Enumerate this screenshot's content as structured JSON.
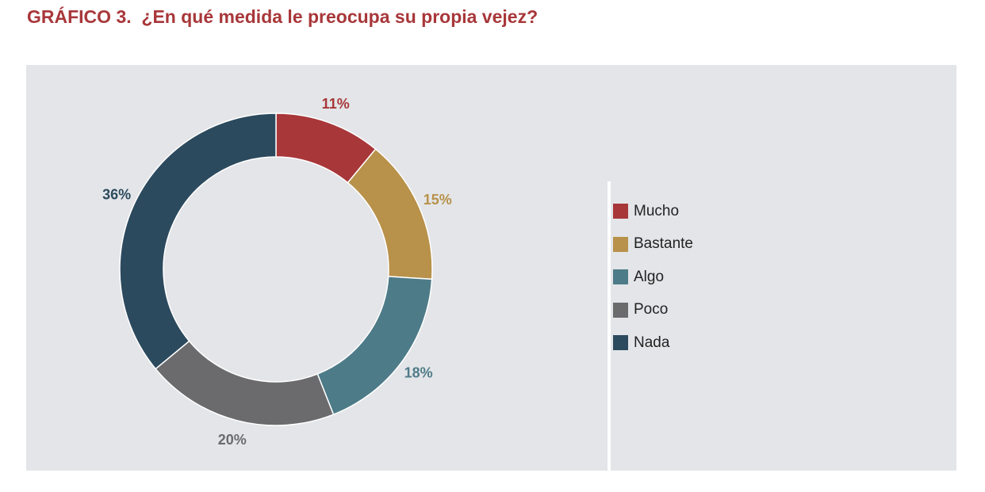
{
  "title": "GRÁFICO 3.  ¿En qué medida le preocupa su propia vejez?",
  "chart_data": {
    "type": "pie",
    "donut": true,
    "title": "GRÁFICO 3.  ¿En qué medida le preocupa su propia vejez?",
    "categories": [
      "Mucho",
      "Bastante",
      "Algo",
      "Poco",
      "Nada"
    ],
    "values": [
      11,
      15,
      18,
      20,
      36
    ],
    "data_labels": [
      "11%",
      "15%",
      "18%",
      "20%",
      "36%"
    ],
    "colors": [
      "#a8373a",
      "#b8914a",
      "#4e7b88",
      "#6b6b6d",
      "#2c4a5e"
    ],
    "legend_position": "right",
    "start": "top, clockwise"
  }
}
